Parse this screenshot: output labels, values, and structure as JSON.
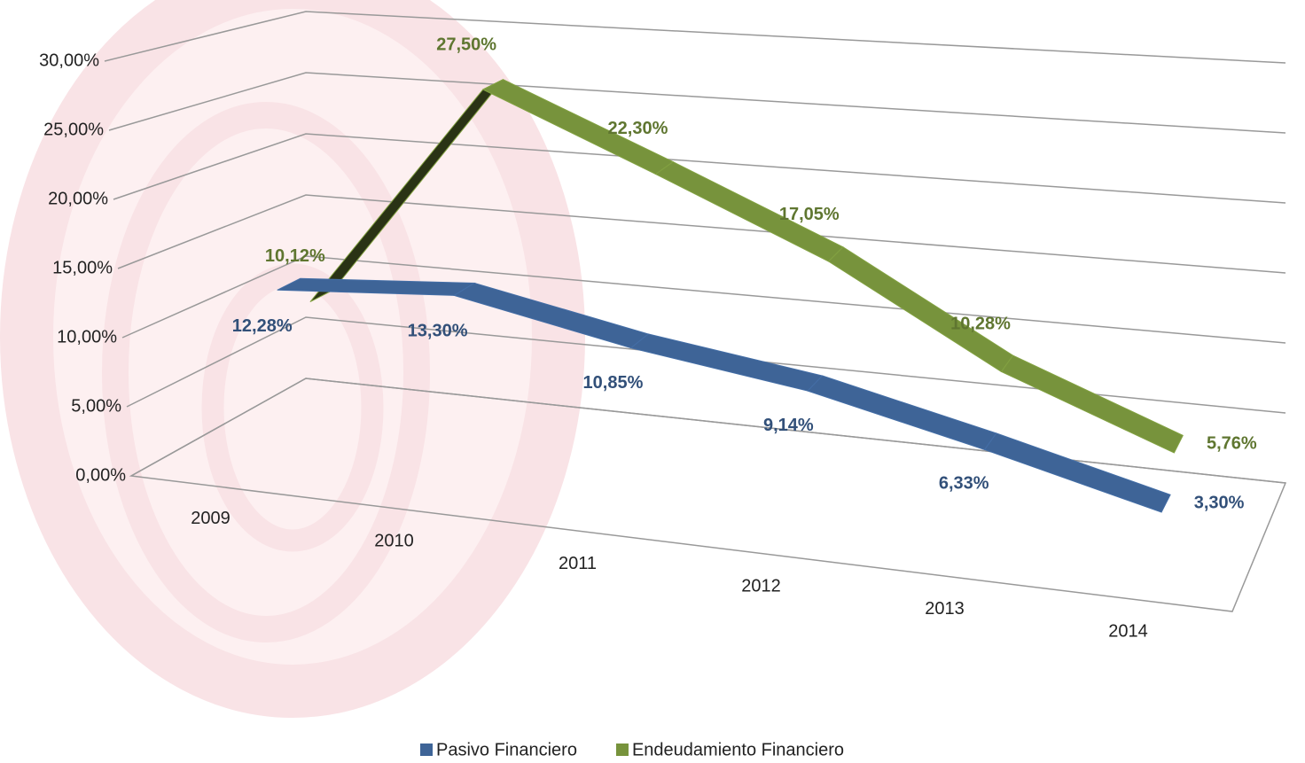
{
  "chart_data": {
    "type": "line3d",
    "categories": [
      "2009",
      "2010",
      "2011",
      "2012",
      "2013",
      "2014"
    ],
    "series": [
      {
        "name": "Pasivo Financiero",
        "color": "#3e6497",
        "values": [
          12.28,
          13.3,
          10.85,
          9.14,
          6.33,
          3.3
        ],
        "value_labels": [
          "12,28%",
          "13,30%",
          "10,85%",
          "9,14%",
          "6,33%",
          "3,30%"
        ]
      },
      {
        "name": "Endeudamiento Financiero",
        "color": "#77933c",
        "values": [
          10.12,
          27.5,
          22.3,
          17.05,
          10.28,
          5.76
        ],
        "value_labels": [
          "10,12%",
          "27,50%",
          "22,30%",
          "17,05%",
          "10,28%",
          "5,76%"
        ]
      }
    ],
    "ylim": [
      0,
      35
    ],
    "yticks": [
      {
        "value": 0,
        "label": "0,00%"
      },
      {
        "value": 5,
        "label": "5,00%"
      },
      {
        "value": 10,
        "label": "10,00%"
      },
      {
        "value": 15,
        "label": "15,00%"
      },
      {
        "value": 20,
        "label": "20,00%"
      },
      {
        "value": 25,
        "label": "25,00%"
      },
      {
        "value": 30,
        "label": "30,00%"
      }
    ],
    "grid": true
  }
}
